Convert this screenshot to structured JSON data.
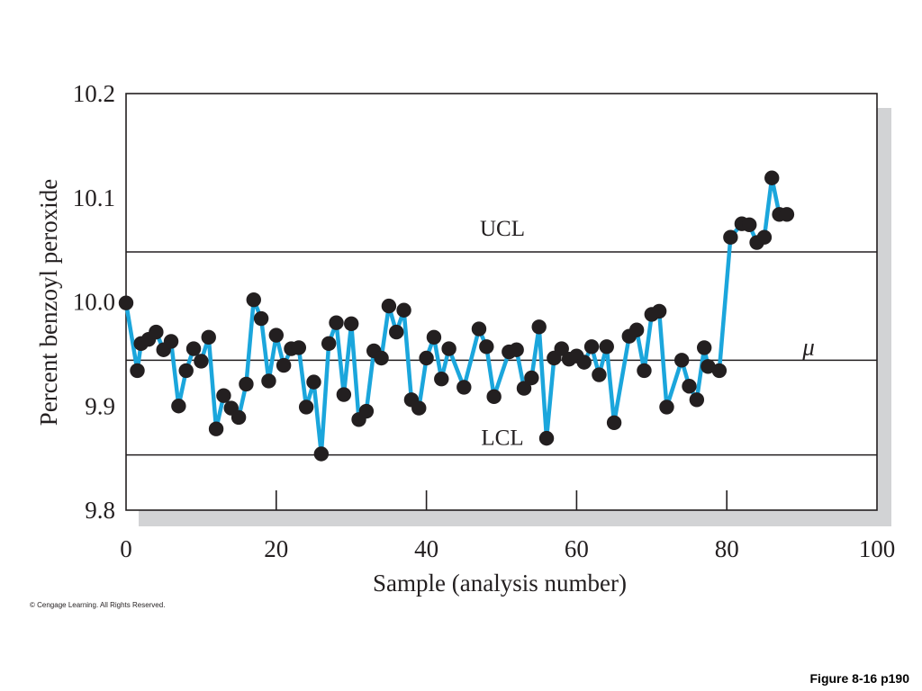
{
  "chart_data": {
    "type": "line",
    "xlabel": "Sample (analysis number)",
    "ylabel": "Percent benzoyl peroxide",
    "xlim": [
      0,
      100
    ],
    "ylim": [
      9.8,
      10.2
    ],
    "x_ticks": [
      "0",
      "20",
      "40",
      "60",
      "80",
      "100"
    ],
    "y_ticks": [
      "9.8",
      "9.9",
      "10.0",
      "10.1",
      "10.2"
    ],
    "grid": false,
    "control_lines": [
      {
        "label": "UCL",
        "y": 10.048
      },
      {
        "label": "μ",
        "y": 9.944
      },
      {
        "label": "LCL",
        "y": 9.853
      }
    ],
    "series": [
      {
        "x": [
          0,
          1.5,
          2,
          3,
          4,
          5,
          6,
          7,
          8,
          9,
          10,
          11,
          12,
          13,
          14,
          15,
          16,
          17,
          18,
          19,
          20,
          21,
          22,
          23,
          24,
          25,
          26,
          27,
          28,
          29,
          30,
          31,
          32,
          33,
          34,
          35,
          36,
          37,
          38,
          39,
          40,
          41,
          42,
          43,
          45,
          47,
          48,
          49,
          51,
          52,
          53,
          54,
          55,
          56,
          57,
          58,
          59,
          60,
          61,
          62,
          63,
          64,
          65,
          67,
          68,
          69,
          70,
          71,
          72,
          74,
          75,
          76,
          77,
          77.5,
          79,
          80.5,
          82,
          83,
          84,
          85,
          86,
          87,
          88
        ],
        "y": [
          9.999,
          9.934,
          9.96,
          9.964,
          9.971,
          9.954,
          9.962,
          9.9,
          9.934,
          9.955,
          9.943,
          9.966,
          9.878,
          9.91,
          9.898,
          9.889,
          9.921,
          10.002,
          9.984,
          9.924,
          9.968,
          9.939,
          9.955,
          9.956,
          9.899,
          9.923,
          9.854,
          9.96,
          9.98,
          9.911,
          9.979,
          9.887,
          9.895,
          9.953,
          9.946,
          9.996,
          9.971,
          9.992,
          9.906,
          9.898,
          9.946,
          9.966,
          9.926,
          9.955,
          9.918,
          9.974,
          9.957,
          9.909,
          9.952,
          9.954,
          9.917,
          9.927,
          9.976,
          9.869,
          9.946,
          9.955,
          9.945,
          9.948,
          9.942,
          9.957,
          9.93,
          9.957,
          9.884,
          9.967,
          9.973,
          9.934,
          9.988,
          9.991,
          9.899,
          9.944,
          9.919,
          9.906,
          9.956,
          9.938,
          9.934,
          10.062,
          10.075,
          10.074,
          10.057,
          10.062,
          10.119,
          10.084,
          10.084
        ]
      }
    ]
  },
  "footer": {
    "copyright": "© Cengage Learning. All Rights Reserved.",
    "caption": "Figure 8-16 p190"
  },
  "colors": {
    "series_line": "#1ba6dc",
    "marker": "#231f20",
    "axis": "#231f20",
    "shadow": "#d2d3d5"
  }
}
